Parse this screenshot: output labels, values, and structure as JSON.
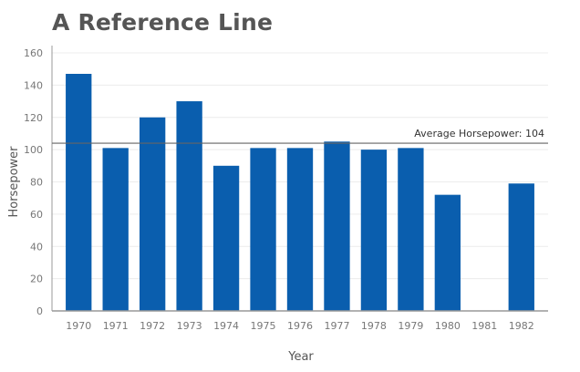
{
  "chart_data": {
    "type": "bar",
    "title": "A Reference Line",
    "xlabel": "Year",
    "ylabel": "Horsepower",
    "categories": [
      "1970",
      "1971",
      "1972",
      "1973",
      "1974",
      "1975",
      "1976",
      "1977",
      "1978",
      "1979",
      "1980",
      "1981",
      "1982"
    ],
    "values": [
      147,
      101,
      120,
      130,
      90,
      101,
      101,
      105,
      100,
      101,
      72,
      null,
      79
    ],
    "ylim": [
      0,
      160
    ],
    "yticks": [
      0,
      20,
      40,
      60,
      80,
      100,
      120,
      140,
      160
    ],
    "grid": true,
    "bar_color": "#0a5eae",
    "reference_line": {
      "value": 104,
      "label": "Average Horsepower: 104",
      "color": "#666666"
    }
  }
}
